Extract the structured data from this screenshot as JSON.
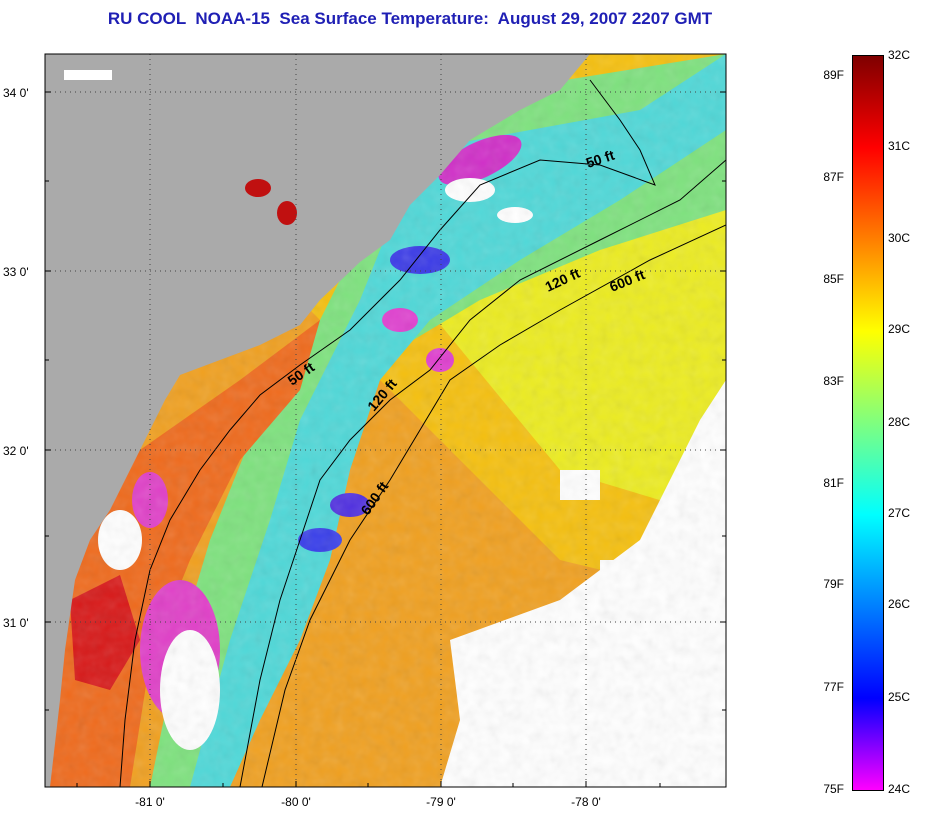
{
  "title": "RU COOL  NOAA-15  Sea Surface Temperature:  August 29, 2007 2207 GMT",
  "axes": {
    "lat_ticks": [
      {
        "label": "34 0'",
        "value": 34.0
      },
      {
        "label": "33 0'",
        "value": 33.0
      },
      {
        "label": "32 0'",
        "value": 32.0
      },
      {
        "label": "31 0'",
        "value": 31.0
      }
    ],
    "lon_ticks": [
      {
        "label": "-81 0'",
        "value": -81.0
      },
      {
        "label": "-80 0'",
        "value": -80.0
      },
      {
        "label": "-79 0'",
        "value": -79.0
      },
      {
        "label": "-78 0'",
        "value": -78.0
      }
    ]
  },
  "contours": [
    {
      "label": "50 ft"
    },
    {
      "label": "120 ft"
    },
    {
      "label": "600 ft"
    }
  ],
  "colorbar": {
    "celsius_labels": [
      "32C",
      "31C",
      "30C",
      "29C",
      "28C",
      "27C",
      "26C",
      "25C",
      "24C"
    ],
    "fahrenheit_labels": [
      "89F",
      "87F",
      "85F",
      "83F",
      "81F",
      "79F",
      "77F",
      "75F"
    ],
    "colors": [
      "#7f0000",
      "#ff0000",
      "#ff7f00",
      "#ffff00",
      "#7fff7f",
      "#00ffff",
      "#007fff",
      "#0000ff",
      "#ff00ff"
    ]
  },
  "colors": {
    "land": "#aaaaaa",
    "title": "#1f1fb4",
    "cloud": "#ffffff"
  }
}
